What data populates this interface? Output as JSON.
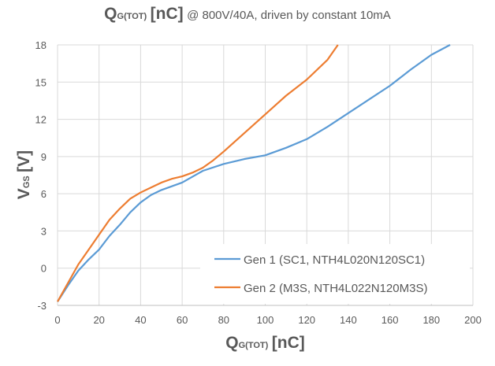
{
  "chart_data": {
    "type": "line",
    "title": {
      "main": "Q",
      "main_sub": "G(TOT)",
      "main_unit": "[nC]",
      "detail": "@ 800V/40A, driven by constant 10mA"
    },
    "xlabel": {
      "main": "Q",
      "sub": "G(TOT)",
      "unit": "[nC]"
    },
    "ylabel": {
      "main": "V",
      "sub": "GS",
      "unit": "[V]"
    },
    "xlim": [
      0,
      200
    ],
    "ylim": [
      -3,
      18
    ],
    "xticks": [
      "0",
      "20",
      "40",
      "60",
      "80",
      "100",
      "120",
      "140",
      "160",
      "180",
      "200"
    ],
    "yticks": [
      "-3",
      "0",
      "3",
      "6",
      "9",
      "12",
      "15",
      "18"
    ],
    "grid": true,
    "legend_position": "bottom-right",
    "series": [
      {
        "name": "Gen 1 (SC1, NTH4L020N120SC1)",
        "color": "#5b9bd5",
        "x": [
          0,
          5,
          10,
          15,
          20,
          25,
          30,
          35,
          40,
          45,
          50,
          55,
          60,
          70,
          80,
          90,
          100,
          110,
          120,
          130,
          140,
          150,
          160,
          170,
          180,
          189
        ],
        "y": [
          -2.7,
          -1.4,
          -0.2,
          0.7,
          1.5,
          2.6,
          3.5,
          4.5,
          5.3,
          5.9,
          6.3,
          6.6,
          6.9,
          7.85,
          8.4,
          8.8,
          9.1,
          9.7,
          10.4,
          11.4,
          12.5,
          13.6,
          14.7,
          16.0,
          17.2,
          18
        ]
      },
      {
        "name": "Gen 2 (M3S, NTH4L022N120M3S)",
        "color": "#ed7d31",
        "x": [
          0,
          5,
          10,
          15,
          20,
          25,
          30,
          35,
          40,
          45,
          50,
          55,
          60,
          65,
          70,
          75,
          80,
          90,
          100,
          110,
          120,
          130,
          135
        ],
        "y": [
          -2.7,
          -1.2,
          0.3,
          1.5,
          2.7,
          3.9,
          4.8,
          5.6,
          6.1,
          6.5,
          6.9,
          7.2,
          7.4,
          7.7,
          8.1,
          8.7,
          9.4,
          10.9,
          12.4,
          13.9,
          15.2,
          16.8,
          18
        ]
      }
    ]
  }
}
